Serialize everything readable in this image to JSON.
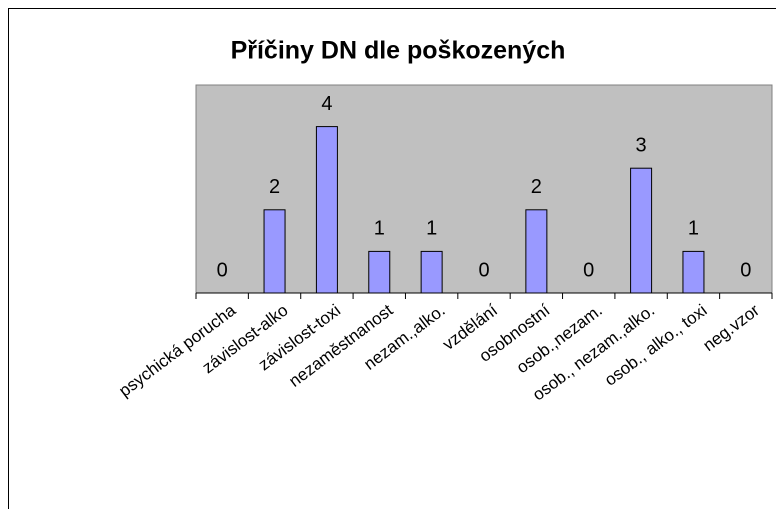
{
  "chart_data": {
    "type": "bar",
    "title": "Příčiny DN dle poškozených",
    "categories": [
      "psychická porucha",
      "závislost-alko",
      "závislost-toxi",
      "nezaměstnanost",
      "nezam.,alko.",
      "vzdělání",
      "osobnostní",
      "osob.,nezam.",
      "osob., nezam.,alko.",
      "osob., alko., toxi",
      "neg.vzor"
    ],
    "values": [
      0,
      2,
      4,
      1,
      1,
      0,
      2,
      0,
      3,
      1,
      0
    ],
    "color": "#9999ff",
    "plot_background": "#c0c0c0",
    "ylim": [
      0,
      5
    ]
  }
}
